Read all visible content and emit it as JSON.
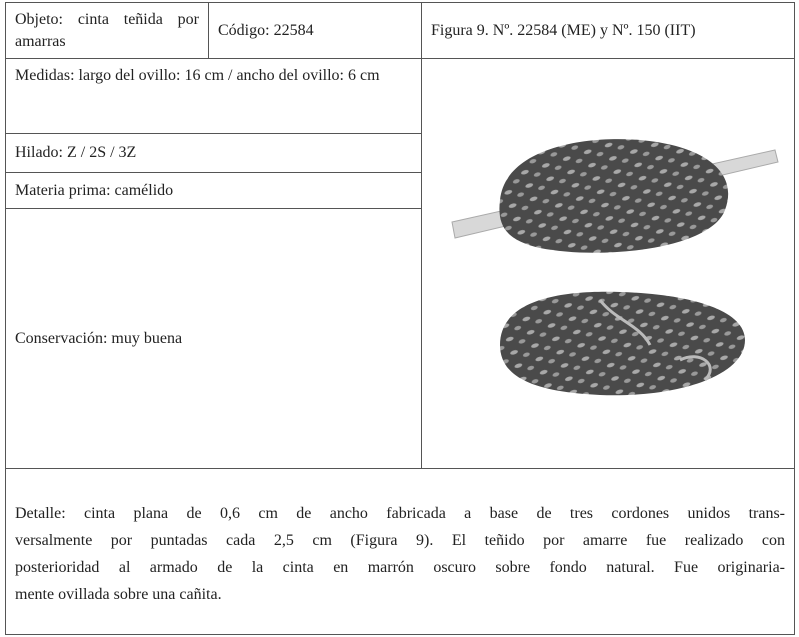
{
  "header": {
    "object": "Objeto: cinta teñida por amarras",
    "code": "Código: 22584",
    "figure": "Figura 9. Nº. 22584 (ME) y Nº. 150 (IIT)"
  },
  "fields": {
    "measures": "Medidas: largo del ovillo: 16 cm / ancho del ovillo: 6 cm",
    "yarn": "Hilado: Z / 2S / 3Z",
    "material": "Materia prima: camélido",
    "conservation": "Conservación: muy buena"
  },
  "detail": {
    "lines": [
      "Detalle: cinta plana de 0,6 cm de ancho fabricada a base de tres cordones unidos trans-",
      "versalmente por puntadas cada 2,5 cm (Figura 9). El teñido por amarre fue realizado con",
      "posterioridad al armado de la cinta en marrón oscuro sobre fondo natural. Fue originaria-",
      "mente ovillada sobre una cañita."
    ]
  }
}
